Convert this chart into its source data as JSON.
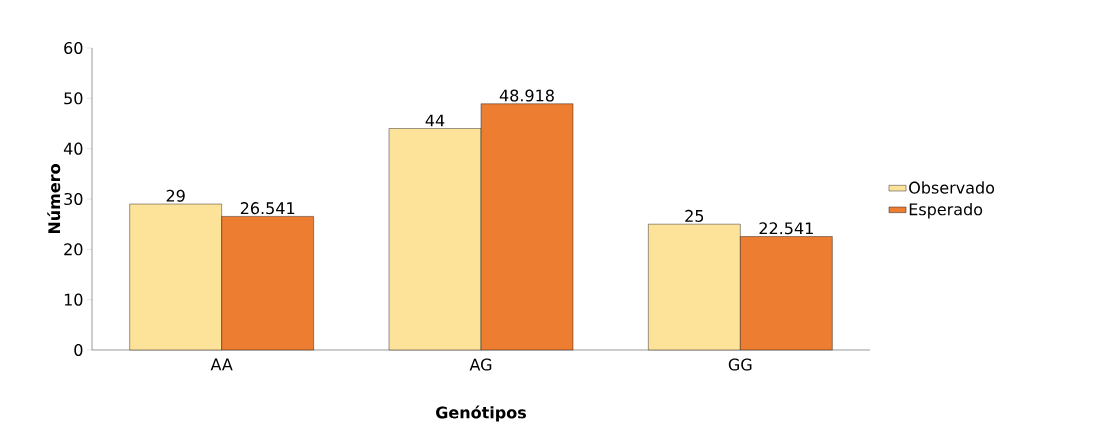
{
  "chart_data": {
    "type": "bar",
    "xlabel": "Genótipos",
    "ylabel": "Número",
    "categories": [
      "AA",
      "AG",
      "GG"
    ],
    "series": [
      {
        "name": "Observado",
        "color": "#fde29a",
        "values": [
          29,
          44,
          25
        ]
      },
      {
        "name": "Esperado",
        "color": "#ed7d31",
        "values": [
          26.541,
          48.918,
          22.541
        ]
      }
    ],
    "ylim": [
      0,
      60
    ],
    "yticks": [
      0,
      10,
      20,
      30,
      40,
      50,
      60
    ],
    "data_labels": true,
    "legend": "right",
    "grid": false
  }
}
